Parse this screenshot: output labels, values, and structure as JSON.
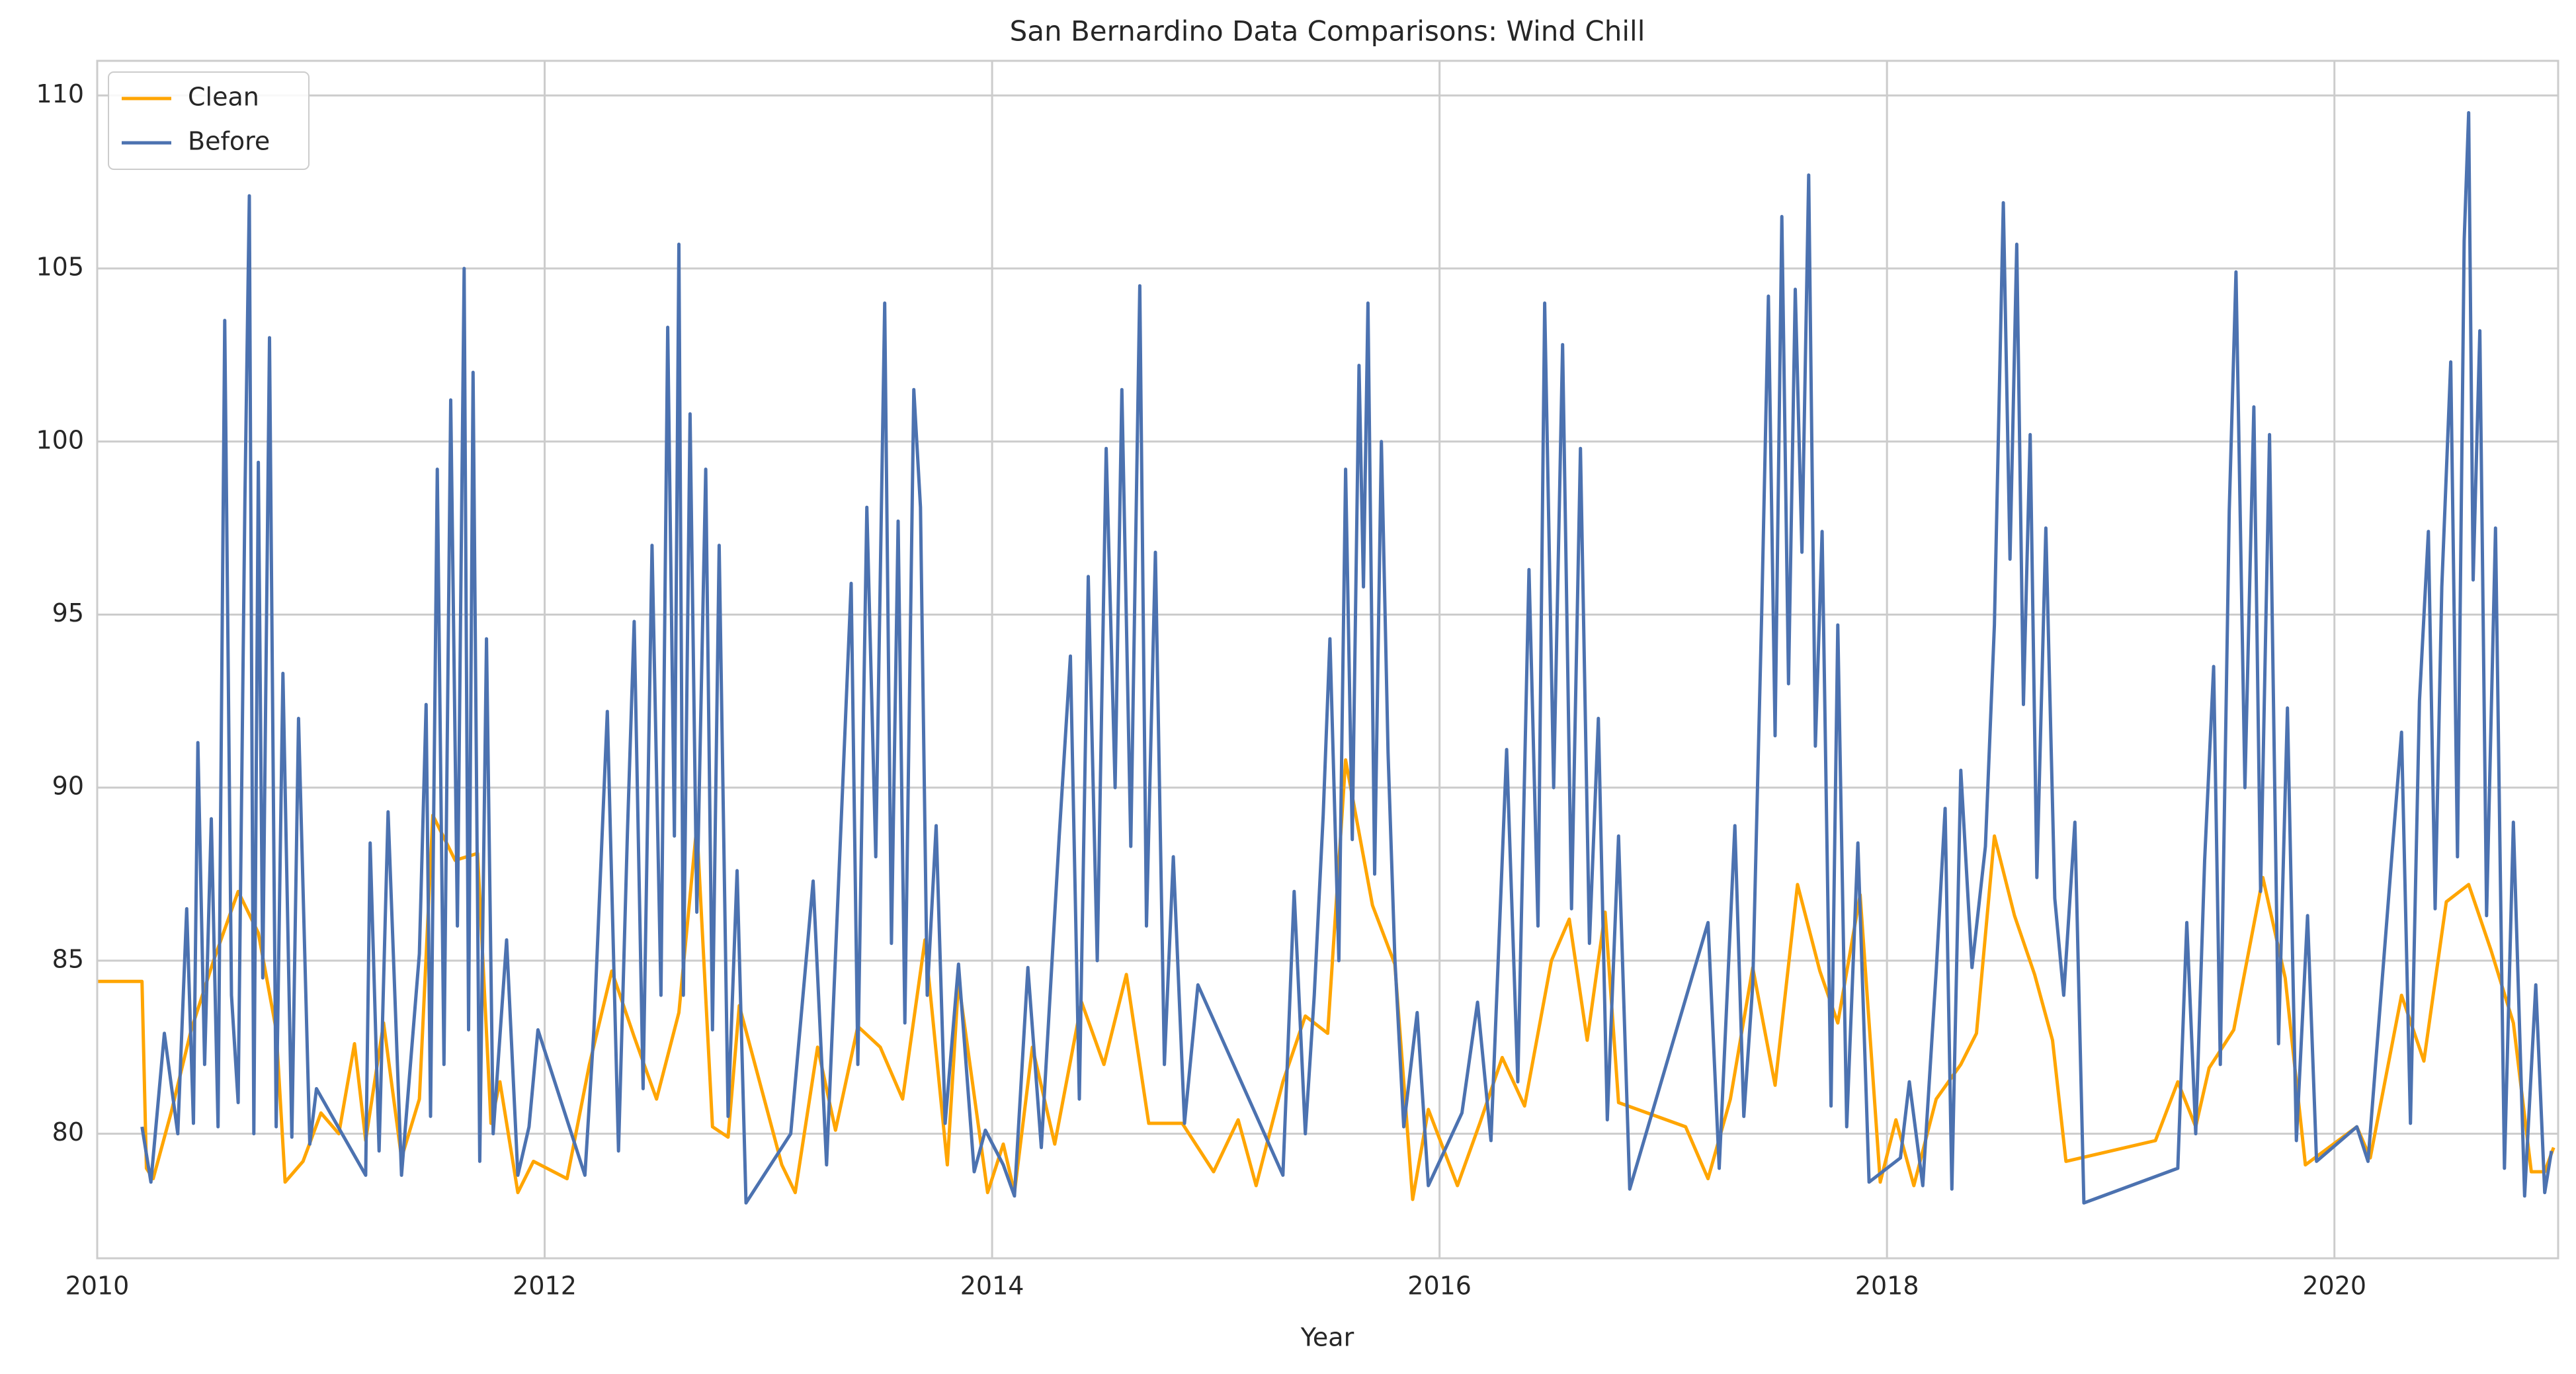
{
  "chart_data": {
    "type": "line",
    "title": "San Bernardino Data Comparisons: Wind Chill",
    "x_label": "Year",
    "xlim": [
      2010,
      2021
    ],
    "xticks": [
      2010,
      2012,
      2014,
      2016,
      2018,
      2020
    ],
    "ylim": [
      76.4,
      111.0
    ],
    "yticks": [
      80,
      85,
      90,
      95,
      100,
      105,
      110
    ],
    "grid": true,
    "legend": "upper left",
    "series": [
      {
        "name": "Clean",
        "color": "#ffa500",
        "x": [
          2010.0,
          2010.2,
          2010.22,
          2010.25,
          2010.33,
          2010.42,
          2010.52,
          2010.63,
          2010.72,
          2010.8,
          2010.84,
          2010.92,
          2011.0,
          2011.08,
          2011.15,
          2011.2,
          2011.28,
          2011.36,
          2011.44,
          2011.5,
          2011.6,
          2011.7,
          2011.76,
          2011.8,
          2011.88,
          2011.95,
          2012.1,
          2012.2,
          2012.3,
          2012.4,
          2012.5,
          2012.6,
          2012.68,
          2012.75,
          2012.82,
          2012.87,
          2013.06,
          2013.12,
          2013.22,
          2013.3,
          2013.4,
          2013.5,
          2013.6,
          2013.7,
          2013.8,
          2013.85,
          2013.98,
          2014.05,
          2014.1,
          2014.18,
          2014.28,
          2014.4,
          2014.5,
          2014.6,
          2014.7,
          2014.85,
          2014.99,
          2015.1,
          2015.18,
          2015.3,
          2015.4,
          2015.5,
          2015.58,
          2015.7,
          2015.8,
          2015.88,
          2015.95,
          2016.08,
          2016.18,
          2016.28,
          2016.38,
          2016.5,
          2016.58,
          2016.66,
          2016.74,
          2016.8,
          2017.1,
          2017.2,
          2017.3,
          2017.4,
          2017.5,
          2017.6,
          2017.7,
          2017.78,
          2017.88,
          2017.97,
          2018.04,
          2018.12,
          2018.22,
          2018.33,
          2018.4,
          2018.48,
          2018.57,
          2018.66,
          2018.74,
          2018.8,
          2019.2,
          2019.3,
          2019.38,
          2019.44,
          2019.55,
          2019.68,
          2019.78,
          2019.87,
          2020.1,
          2020.16,
          2020.3,
          2020.4,
          2020.5,
          2020.6,
          2020.7,
          2020.8,
          2020.88,
          2020.94,
          2020.98
        ],
        "values": [
          84.4,
          84.4,
          79.0,
          78.7,
          80.6,
          83.0,
          85.0,
          87.0,
          85.8,
          83.0,
          78.6,
          79.2,
          80.6,
          80.0,
          82.6,
          79.8,
          83.2,
          79.3,
          81.0,
          89.2,
          87.9,
          88.1,
          80.3,
          81.5,
          78.3,
          79.2,
          78.7,
          82.0,
          84.7,
          82.8,
          81.0,
          83.5,
          88.9,
          80.2,
          79.9,
          83.7,
          79.1,
          78.3,
          82.5,
          80.1,
          83.1,
          82.5,
          81.0,
          85.6,
          79.1,
          84.4,
          78.3,
          79.7,
          78.3,
          82.5,
          79.7,
          83.8,
          82.0,
          84.6,
          80.3,
          80.3,
          78.9,
          80.4,
          78.5,
          81.5,
          83.4,
          82.9,
          90.8,
          86.6,
          84.9,
          78.1,
          80.7,
          78.5,
          80.3,
          82.2,
          80.8,
          85.0,
          86.2,
          82.7,
          86.4,
          80.9,
          80.2,
          78.7,
          81.0,
          84.8,
          81.4,
          87.2,
          84.7,
          83.2,
          86.9,
          78.6,
          80.4,
          78.5,
          81.0,
          82.0,
          82.9,
          88.6,
          86.3,
          84.6,
          82.7,
          79.2,
          79.8,
          81.5,
          80.2,
          81.9,
          83.0,
          87.4,
          84.5,
          79.1,
          80.2,
          79.3,
          84.0,
          82.1,
          86.7,
          87.2,
          85.3,
          83.2,
          78.9,
          78.9,
          79.6
        ]
      },
      {
        "name": "Before",
        "color": "#4c72b0",
        "x": [
          2010.2,
          2010.24,
          2010.3,
          2010.36,
          2010.4,
          2010.43,
          2010.45,
          2010.48,
          2010.51,
          2010.54,
          2010.57,
          2010.6,
          2010.63,
          2010.66,
          2010.68,
          2010.7,
          2010.72,
          2010.74,
          2010.77,
          2010.8,
          2010.83,
          2010.87,
          2010.9,
          2010.95,
          2010.98,
          2011.2,
          2011.22,
          2011.26,
          2011.3,
          2011.36,
          2011.44,
          2011.47,
          2011.49,
          2011.52,
          2011.55,
          2011.58,
          2011.61,
          2011.64,
          2011.66,
          2011.68,
          2011.71,
          2011.74,
          2011.77,
          2011.83,
          2011.88,
          2011.93,
          2011.97,
          2012.18,
          2012.22,
          2012.28,
          2012.33,
          2012.37,
          2012.4,
          2012.44,
          2012.48,
          2012.52,
          2012.55,
          2012.58,
          2012.6,
          2012.62,
          2012.65,
          2012.68,
          2012.72,
          2012.75,
          2012.78,
          2012.82,
          2012.86,
          2012.9,
          2013.1,
          2013.2,
          2013.26,
          2013.33,
          2013.37,
          2013.4,
          2013.44,
          2013.48,
          2013.52,
          2013.55,
          2013.58,
          2013.61,
          2013.65,
          2013.68,
          2013.71,
          2013.75,
          2013.79,
          2013.85,
          2013.92,
          2013.97,
          2014.05,
          2014.1,
          2014.16,
          2014.22,
          2014.3,
          2014.35,
          2014.39,
          2014.43,
          2014.47,
          2014.51,
          2014.55,
          2014.58,
          2014.62,
          2014.66,
          2014.69,
          2014.73,
          2014.77,
          2014.81,
          2014.86,
          2014.92,
          2015.3,
          2015.35,
          2015.4,
          2015.44,
          2015.48,
          2015.51,
          2015.55,
          2015.58,
          2015.61,
          2015.64,
          2015.66,
          2015.68,
          2015.71,
          2015.74,
          2015.77,
          2015.8,
          2015.84,
          2015.9,
          2015.95,
          2016.1,
          2016.17,
          2016.23,
          2016.3,
          2016.35,
          2016.4,
          2016.44,
          2016.47,
          2016.51,
          2016.55,
          2016.59,
          2016.63,
          2016.67,
          2016.71,
          2016.75,
          2016.8,
          2016.85,
          2017.2,
          2017.25,
          2017.32,
          2017.36,
          2017.4,
          2017.44,
          2017.47,
          2017.5,
          2017.53,
          2017.56,
          2017.59,
          2017.62,
          2017.65,
          2017.68,
          2017.71,
          2017.75,
          2017.78,
          2017.82,
          2017.87,
          2017.92,
          2018.06,
          2018.1,
          2018.16,
          2018.22,
          2018.26,
          2018.29,
          2018.33,
          2018.38,
          2018.44,
          2018.48,
          2018.52,
          2018.55,
          2018.58,
          2018.61,
          2018.64,
          2018.67,
          2018.71,
          2018.75,
          2018.79,
          2018.84,
          2018.88,
          2019.3,
          2019.34,
          2019.38,
          2019.42,
          2019.46,
          2019.49,
          2019.53,
          2019.56,
          2019.6,
          2019.64,
          2019.67,
          2019.71,
          2019.75,
          2019.79,
          2019.83,
          2019.88,
          2019.92,
          2020.1,
          2020.15,
          2020.3,
          2020.34,
          2020.38,
          2020.42,
          2020.45,
          2020.48,
          2020.52,
          2020.55,
          2020.58,
          2020.6,
          2020.62,
          2020.65,
          2020.68,
          2020.72,
          2020.76,
          2020.8,
          2020.85,
          2020.9,
          2020.94,
          2020.97
        ],
        "values": [
          80.2,
          78.6,
          82.9,
          80.0,
          86.5,
          80.3,
          91.3,
          82.0,
          89.1,
          80.2,
          103.5,
          84.0,
          80.9,
          98.3,
          107.1,
          80.0,
          99.4,
          84.5,
          103.0,
          80.2,
          93.3,
          79.9,
          92.0,
          79.7,
          81.3,
          78.8,
          88.4,
          79.5,
          89.3,
          78.8,
          85.2,
          92.4,
          80.5,
          99.2,
          82.0,
          101.2,
          86.0,
          105.0,
          83.0,
          102.0,
          79.2,
          94.3,
          80.0,
          85.6,
          78.8,
          80.2,
          83.0,
          78.8,
          83.0,
          92.2,
          79.5,
          88.7,
          94.8,
          81.3,
          97.0,
          84.0,
          103.3,
          88.6,
          105.7,
          84.0,
          100.8,
          86.4,
          99.2,
          83.0,
          97.0,
          80.5,
          87.6,
          78.0,
          80.0,
          87.3,
          79.1,
          89.7,
          95.9,
          82.0,
          98.1,
          88.0,
          104.0,
          85.5,
          97.7,
          83.2,
          101.5,
          98.1,
          84.0,
          88.9,
          80.3,
          84.9,
          78.9,
          80.1,
          79.1,
          78.2,
          84.8,
          79.6,
          88.6,
          93.8,
          81.0,
          96.1,
          85.0,
          99.8,
          90.0,
          101.5,
          88.3,
          104.5,
          86.0,
          96.8,
          82.0,
          88.0,
          80.3,
          84.3,
          78.8,
          87.0,
          80.0,
          84.0,
          89.2,
          94.3,
          85.0,
          99.2,
          88.5,
          102.2,
          95.8,
          104.0,
          87.5,
          100.0,
          91.0,
          85.1,
          80.2,
          83.5,
          78.5,
          80.6,
          83.8,
          79.8,
          91.1,
          81.5,
          96.3,
          86.0,
          104.0,
          90.0,
          102.8,
          86.5,
          99.8,
          85.5,
          92.0,
          80.4,
          88.6,
          78.4,
          86.1,
          79.0,
          88.9,
          80.5,
          84.3,
          95.0,
          104.2,
          91.5,
          106.5,
          93.0,
          104.4,
          96.8,
          107.7,
          91.2,
          97.4,
          80.8,
          94.7,
          80.2,
          88.4,
          78.6,
          79.3,
          81.5,
          78.5,
          84.7,
          89.4,
          78.4,
          90.5,
          84.8,
          88.3,
          94.7,
          106.9,
          96.6,
          105.7,
          92.4,
          100.2,
          87.4,
          97.5,
          86.8,
          84.0,
          89.0,
          78.0,
          79.0,
          86.1,
          80.0,
          87.9,
          93.5,
          82.0,
          98.0,
          104.9,
          90.0,
          101.0,
          87.0,
          100.2,
          82.6,
          92.3,
          79.8,
          86.3,
          79.2,
          80.2,
          79.2,
          91.6,
          80.3,
          92.5,
          97.4,
          86.5,
          95.8,
          102.3,
          88.0,
          105.8,
          109.5,
          96.0,
          103.2,
          86.3,
          97.5,
          79.0,
          89.0,
          78.2,
          84.3,
          78.3,
          79.5
        ]
      }
    ]
  }
}
